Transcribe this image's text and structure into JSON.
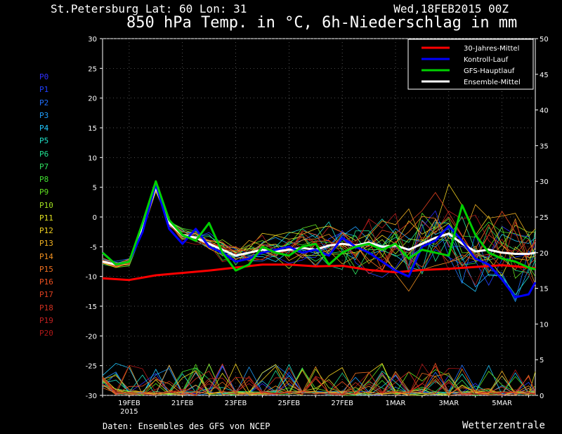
{
  "header": {
    "location": "St.Petersburg  Lat: 60 Lon: 31",
    "date": "Wed,18FEB2015 00Z",
    "title": "850 hPa Temp. in °C, 6h-Niederschlag in mm"
  },
  "footer": {
    "credit": "Daten: Ensembles des GFS von NCEP",
    "brand": "Wetterzentrale"
  },
  "members": [
    {
      "name": "P0",
      "color": "#3030ff"
    },
    {
      "name": "P1",
      "color": "#2040ff"
    },
    {
      "name": "P2",
      "color": "#2070ff"
    },
    {
      "name": "P3",
      "color": "#20a0ff"
    },
    {
      "name": "P4",
      "color": "#20c8ff"
    },
    {
      "name": "P5",
      "color": "#20e0c8"
    },
    {
      "name": "P6",
      "color": "#20e090"
    },
    {
      "name": "P7",
      "color": "#30e060"
    },
    {
      "name": "P8",
      "color": "#40e030"
    },
    {
      "name": "P9",
      "color": "#60e020"
    },
    {
      "name": "P10",
      "color": "#a0e020"
    },
    {
      "name": "P11",
      "color": "#e0e020"
    },
    {
      "name": "P12",
      "color": "#f0d020"
    },
    {
      "name": "P13",
      "color": "#f0b020"
    },
    {
      "name": "P14",
      "color": "#f09020"
    },
    {
      "name": "P15",
      "color": "#f07020"
    },
    {
      "name": "P16",
      "color": "#f05020"
    },
    {
      "name": "P17",
      "color": "#e04020"
    },
    {
      "name": "P18",
      "color": "#d03020"
    },
    {
      "name": "P19",
      "color": "#c02020"
    },
    {
      "name": "P20",
      "color": "#b01818"
    }
  ],
  "legend": [
    {
      "label": "30-Jahres-Mittel",
      "color": "#ff0000"
    },
    {
      "label": "Kontroll-Lauf",
      "color": "#0000ff"
    },
    {
      "label": "GFS-Hauptlauf",
      "color": "#00d000"
    },
    {
      "label": "Ensemble-Mittel",
      "color": "#ffffff"
    }
  ],
  "chart_data": {
    "type": "line",
    "x_start": "2015-02-18T00Z",
    "x_end": "2015-03-06T06Z",
    "x_ticks": [
      {
        "label": "19FEB",
        "sub": "2015",
        "day": 1
      },
      {
        "label": "21FEB",
        "day": 3
      },
      {
        "label": "23FEB",
        "day": 5
      },
      {
        "label": "25FEB",
        "day": 7
      },
      {
        "label": "27FEB",
        "day": 9
      },
      {
        "label": "1MAR",
        "day": 11
      },
      {
        "label": "3MAR",
        "day": 13
      },
      {
        "label": "5MAR",
        "day": 15
      }
    ],
    "y_left": {
      "min": -30,
      "max": 30,
      "ticks": [
        -30,
        -25,
        -20,
        -15,
        -10,
        -5,
        0,
        5,
        10,
        15,
        20,
        25,
        30
      ]
    },
    "y_right": {
      "min": 0,
      "max": 50,
      "ticks": [
        0,
        5,
        10,
        15,
        20,
        25,
        30,
        35,
        40,
        45,
        50
      ]
    },
    "grid": true,
    "legend_position": "top-right",
    "series": [
      {
        "name": "30-Jahres-Mittel",
        "color": "#ff0000",
        "width": 3,
        "x": [
          0,
          1,
          2,
          3,
          4,
          5,
          6,
          7,
          8,
          9,
          10,
          11,
          12,
          13,
          14,
          15,
          16,
          16.25
        ],
        "y": [
          -10.3,
          -10.6,
          -9.8,
          -9.4,
          -9.0,
          -8.5,
          -8.0,
          -8.0,
          -8.3,
          -8.2,
          -8.9,
          -9.3,
          -8.9,
          -8.7,
          -8.4,
          -8.1,
          -8.5,
          -8.6
        ]
      },
      {
        "name": "Ensemble-Mittel",
        "color": "#ffffff",
        "width": 3,
        "x": [
          0,
          0.5,
          1,
          1.5,
          2,
          2.5,
          3,
          3.5,
          4,
          4.5,
          5,
          5.5,
          6,
          6.5,
          7,
          7.5,
          8,
          8.5,
          9,
          9.5,
          10,
          10.5,
          11,
          11.5,
          12,
          12.5,
          13,
          13.5,
          14,
          14.5,
          15,
          15.5,
          16,
          16.25
        ],
        "y": [
          -7.5,
          -8,
          -7.5,
          -2,
          5,
          -1,
          -3,
          -3.5,
          -4.5,
          -5.5,
          -6.5,
          -6,
          -5.5,
          -5.8,
          -5.5,
          -5.2,
          -5.5,
          -4.8,
          -4.5,
          -4.8,
          -4.3,
          -5,
          -4.8,
          -5.5,
          -4.5,
          -3.5,
          -2.8,
          -4.5,
          -5.8,
          -5.5,
          -6,
          -6.2,
          -6.2,
          -6
        ]
      },
      {
        "name": "Kontroll-Lauf",
        "color": "#0000ff",
        "width": 3,
        "x": [
          0,
          0.5,
          1,
          1.5,
          2,
          2.5,
          3,
          3.5,
          4,
          4.5,
          5,
          5.5,
          6,
          6.5,
          7,
          7.5,
          8,
          8.5,
          9,
          9.5,
          10,
          10.5,
          11,
          11.5,
          12,
          12.5,
          13,
          13.5,
          14,
          14.5,
          15,
          15.5,
          16,
          16.25
        ],
        "y": [
          -6,
          -8,
          -7.5,
          -2.5,
          5.5,
          -2,
          -4.5,
          -2,
          -5,
          -6,
          -7.5,
          -7,
          -6,
          -5.5,
          -5,
          -6,
          -5.5,
          -6.5,
          -3.5,
          -5,
          -6,
          -7.5,
          -9,
          -10,
          -5,
          -4,
          -1.5,
          -4,
          -7,
          -8,
          -10.5,
          -13.5,
          -13,
          -11
        ]
      },
      {
        "name": "GFS-Hauptlauf",
        "color": "#00d000",
        "width": 3,
        "x": [
          0,
          0.5,
          1,
          1.5,
          2,
          2.5,
          3,
          3.5,
          4,
          4.5,
          5,
          5.5,
          6,
          6.5,
          7,
          7.5,
          8,
          8.5,
          9,
          9.5,
          10,
          10.5,
          11,
          11.5,
          12,
          12.5,
          13,
          13.5,
          14,
          14.5,
          15,
          15.5,
          16,
          16.25
        ],
        "y": [
          -6,
          -8,
          -7.5,
          -1,
          6,
          -0.5,
          -3,
          -4,
          -1,
          -6,
          -9,
          -8,
          -5,
          -6,
          -6.5,
          -5,
          -4.5,
          -8,
          -6,
          -5,
          -4.5,
          -5.5,
          -4.5,
          -7,
          -5.5,
          -6,
          -6.5,
          2,
          -3,
          -6,
          -7,
          -7.5,
          -8.5,
          -8.8
        ]
      }
    ]
  }
}
